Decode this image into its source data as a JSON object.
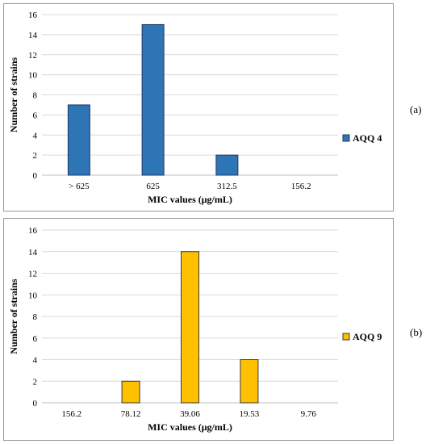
{
  "charts": [
    {
      "panel_label": "(a)",
      "legend_color": "#2e75b6",
      "legend_border": "#1f3864",
      "chart_data": {
        "type": "bar",
        "categories": [
          "> 625",
          "625",
          "312.5",
          "156.2"
        ],
        "series": [
          {
            "name": "AQQ 4",
            "values": [
              7,
              15,
              2,
              0
            ],
            "color": "#2e75b6"
          }
        ],
        "title": "",
        "xlabel": "MIC values (μg/mL)",
        "ylabel": "Number of strains",
        "ylim": [
          0,
          16
        ],
        "yticks": [
          0,
          2,
          4,
          6,
          8,
          10,
          12,
          14,
          16
        ],
        "grid": true,
        "legend_position": "right"
      }
    },
    {
      "panel_label": "(b)",
      "legend_color": "#ffc000",
      "legend_border": "#3a3a3a",
      "chart_data": {
        "type": "bar",
        "categories": [
          "156.2",
          "78.12",
          "39.06",
          "19.53",
          "9.76"
        ],
        "series": [
          {
            "name": "AQQ 9",
            "values": [
              0,
              2,
              14,
              4,
              0
            ],
            "color": "#ffc000"
          }
        ],
        "title": "",
        "xlabel": "MIC values (μg/mL)",
        "ylabel": "Number of strains",
        "ylim": [
          0,
          16
        ],
        "yticks": [
          0,
          2,
          4,
          6,
          8,
          10,
          12,
          14,
          16
        ],
        "grid": true,
        "legend_position": "right"
      }
    }
  ]
}
